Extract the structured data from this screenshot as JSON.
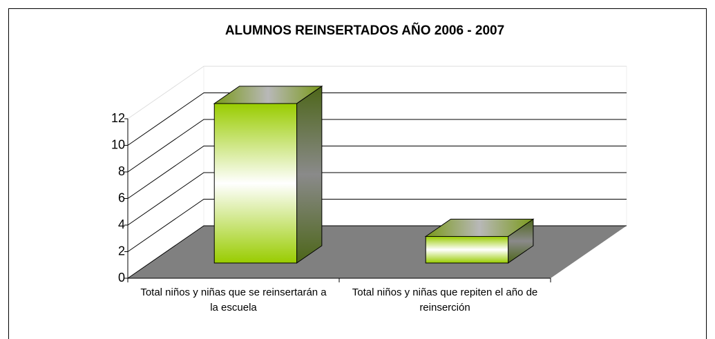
{
  "chart_data": {
    "type": "bar3d",
    "title": "ALUMNOS REINSERTADOS AÑO 2006 - 2007",
    "categories": [
      "Total niños y niñas  que se reinsertarán a la escuela",
      "Total  niños y niñas  que repiten el año de reinserción"
    ],
    "values": [
      12,
      2
    ],
    "color": "#99cc00",
    "ylim": [
      0,
      12
    ],
    "yticks": [
      0,
      2,
      4,
      6,
      8,
      10,
      12
    ],
    "grid": true
  }
}
